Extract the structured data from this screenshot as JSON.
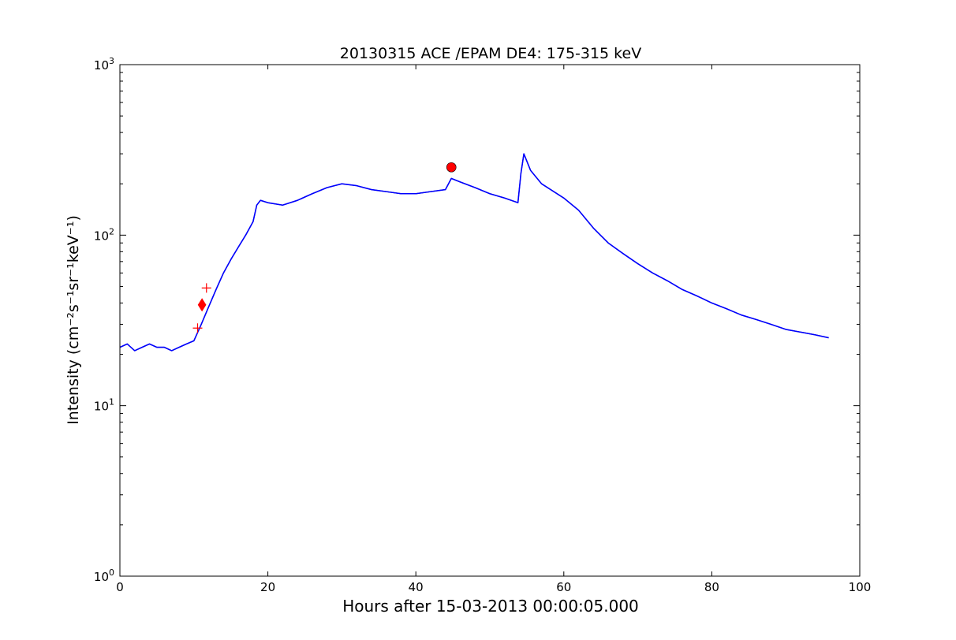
{
  "chart_data": {
    "type": "line",
    "title": "20130315 ACE /EPAM DE4: 175-315 keV",
    "xlabel": "Hours after 15-03-2013 00:00:05.000",
    "ylabel": "Intensity (cm⁻²s⁻¹sr⁻¹keV⁻¹)",
    "xlim": [
      0,
      100
    ],
    "ylim": [
      1,
      1000
    ],
    "yscale": "log",
    "grid": false,
    "x_ticks": [
      0,
      20,
      40,
      60,
      80,
      100
    ],
    "x_tick_labels": [
      "0",
      "20",
      "40",
      "60",
      "80",
      "100"
    ],
    "y_ticks": [
      1,
      10,
      100,
      1000
    ],
    "y_tick_labels": [
      {
        "base": "10",
        "exp": "0"
      },
      {
        "base": "10",
        "exp": "1"
      },
      {
        "base": "10",
        "exp": "2"
      },
      {
        "base": "10",
        "exp": "3"
      }
    ],
    "series": [
      {
        "color": "#000000",
        "x": [
          0,
          1,
          2,
          3,
          4,
          5,
          6,
          7,
          8,
          9,
          10,
          11,
          12,
          13,
          14,
          15,
          16,
          17,
          18,
          18.5,
          19,
          20,
          22,
          24,
          26,
          28,
          30,
          32,
          34,
          36,
          38,
          40,
          42,
          44,
          44.8,
          46,
          48,
          50,
          52,
          53.8,
          54.2,
          54.6,
          55.5,
          57,
          60,
          62,
          64,
          66,
          68,
          70,
          72,
          74,
          76,
          78,
          80,
          82,
          84,
          86,
          88,
          90,
          92,
          94,
          95.8
        ],
        "y": [
          22,
          23,
          21,
          22,
          23,
          22,
          22,
          21,
          22,
          23,
          24,
          30,
          38,
          48,
          60,
          72,
          85,
          100,
          120,
          150,
          160,
          155,
          150,
          160,
          175,
          190,
          200,
          195,
          185,
          180,
          175,
          175,
          180,
          185,
          215,
          205,
          190,
          175,
          165,
          155,
          230,
          300,
          240,
          200,
          165,
          140,
          110,
          90,
          78,
          68,
          60,
          54,
          48,
          44,
          40,
          37,
          34,
          32,
          30,
          28,
          27,
          26,
          25
        ]
      },
      {
        "color": "#0000ff",
        "x": [
          0,
          1,
          2,
          3,
          4,
          5,
          6,
          7,
          8,
          9,
          10,
          11,
          12,
          13,
          14,
          15,
          16,
          17,
          18,
          18.5,
          19,
          20,
          22,
          24,
          26,
          28,
          30,
          32,
          34,
          36,
          38,
          40,
          42,
          44,
          44.8,
          46,
          48,
          50,
          52,
          53.8,
          54.2,
          54.6,
          55.5,
          57,
          60,
          62,
          64,
          66,
          68,
          70,
          72,
          74,
          76,
          78,
          80,
          82,
          84,
          86,
          88,
          90,
          92,
          94,
          95.8
        ],
        "y": [
          22,
          23,
          21,
          22,
          23,
          22,
          22,
          21,
          22,
          23,
          24,
          30,
          38,
          48,
          60,
          72,
          85,
          100,
          120,
          150,
          160,
          155,
          150,
          160,
          175,
          190,
          200,
          195,
          185,
          180,
          175,
          175,
          180,
          185,
          215,
          205,
          190,
          175,
          165,
          155,
          230,
          300,
          240,
          200,
          165,
          140,
          110,
          90,
          78,
          68,
          60,
          54,
          48,
          44,
          40,
          37,
          34,
          32,
          30,
          28,
          27,
          26,
          25
        ]
      }
    ],
    "markers": [
      {
        "shape": "plus",
        "color": "#ff0000",
        "x": 10.5,
        "y": 28.5
      },
      {
        "shape": "diamond",
        "color": "#ff0000",
        "x": 11.1,
        "y": 39
      },
      {
        "shape": "plus",
        "color": "#ff0000",
        "x": 11.7,
        "y": 49
      },
      {
        "shape": "circle",
        "color": "#ff0000",
        "x": 44.8,
        "y": 250
      }
    ]
  }
}
